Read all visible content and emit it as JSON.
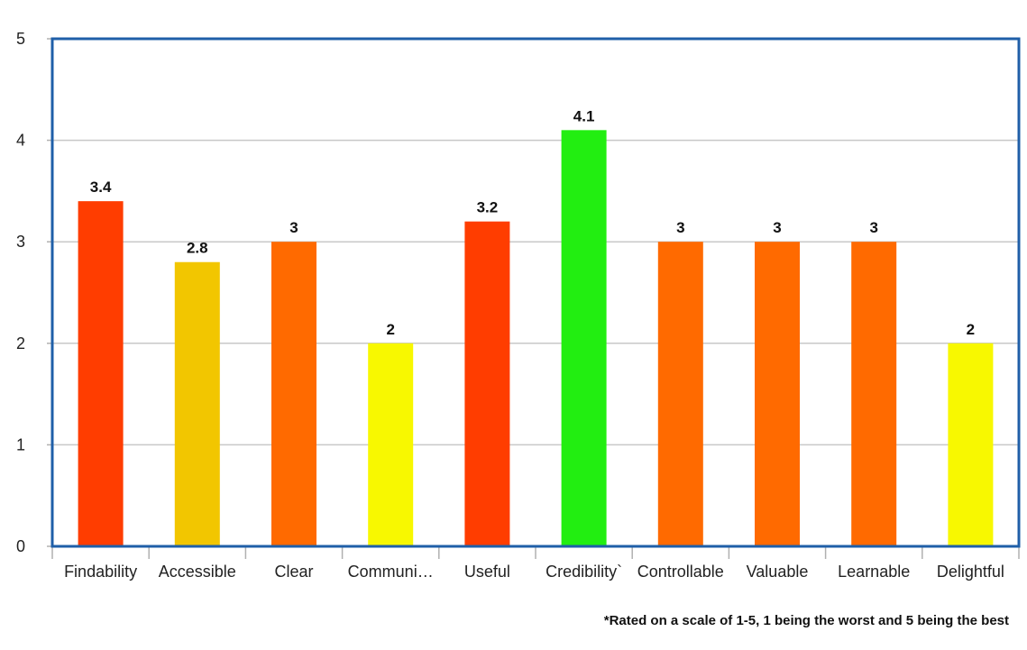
{
  "chart_data": {
    "type": "bar",
    "categories": [
      "Findability",
      "Accessible",
      "Clear",
      "Communi…",
      "Useful",
      "Credibility`",
      "Controllable",
      "Valuable",
      "Learnable",
      "Delightful"
    ],
    "values": [
      3.4,
      2.8,
      3,
      2,
      3.2,
      4.1,
      3,
      3,
      3,
      2
    ],
    "value_labels": [
      "3.4",
      "2.8",
      "3",
      "2",
      "3.2",
      "4.1",
      "3",
      "3",
      "3",
      "2"
    ],
    "bar_colors": [
      "#ff3d00",
      "#f2c600",
      "#ff6a00",
      "#f8f800",
      "#ff3d00",
      "#22ee11",
      "#ff6a00",
      "#ff6a00",
      "#ff6a00",
      "#f8f800"
    ],
    "ylim": [
      0,
      5
    ],
    "yticks": [
      "0",
      "1",
      "2",
      "3",
      "4",
      "5"
    ],
    "grid": true,
    "legend": "none",
    "title": "",
    "xlabel": "",
    "ylabel": ""
  },
  "footnote": "*Rated on a scale of 1-5, 1 being the worst and 5 being the best",
  "colors": {
    "plot_border": "#1f5fa8",
    "gridline": "#c8c8c8",
    "axis": "#b0b0b0",
    "text": "#222222"
  }
}
